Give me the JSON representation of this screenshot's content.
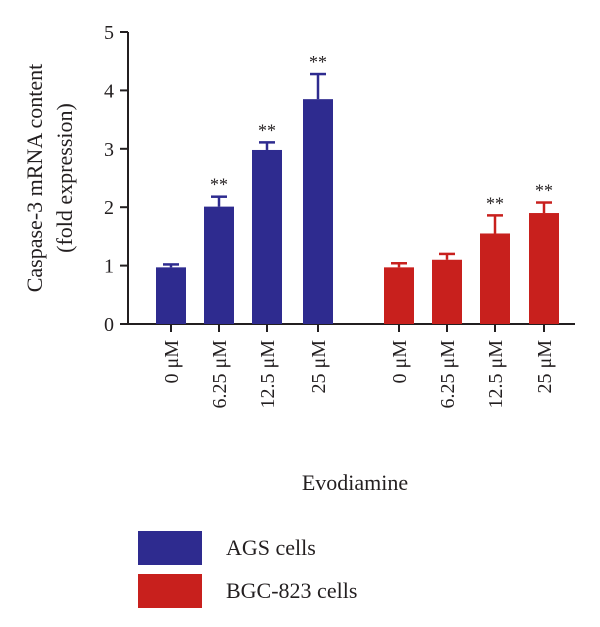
{
  "chart_data": {
    "type": "bar",
    "xlabel": "Evodiamine",
    "ylabel_lines": [
      "Caspase-3 mRNA content",
      "(fold expression)"
    ],
    "ylim": [
      0,
      5
    ],
    "yticks": [
      "0",
      "1",
      "2",
      "3",
      "4",
      "5"
    ],
    "categories": [
      "0 μM",
      "6.25 μM",
      "12.5 μM",
      "25 μM"
    ],
    "series": [
      {
        "name": "AGS cells",
        "color": "#2e2b8f",
        "values": [
          0.97,
          2.01,
          2.98,
          3.85
        ],
        "errors": [
          0.05,
          0.17,
          0.13,
          0.43
        ],
        "significance": [
          "",
          "**",
          "**",
          "**"
        ]
      },
      {
        "name": "BGC-823 cells",
        "color": "#c8201d",
        "values": [
          0.97,
          1.1,
          1.55,
          1.9
        ],
        "errors": [
          0.07,
          0.1,
          0.31,
          0.18
        ],
        "significance": [
          "",
          "",
          "**",
          "**"
        ]
      }
    ],
    "legend": {
      "position": "bottom-left",
      "items": [
        "AGS cells",
        "BGC-823 cells"
      ]
    },
    "grid": false
  }
}
